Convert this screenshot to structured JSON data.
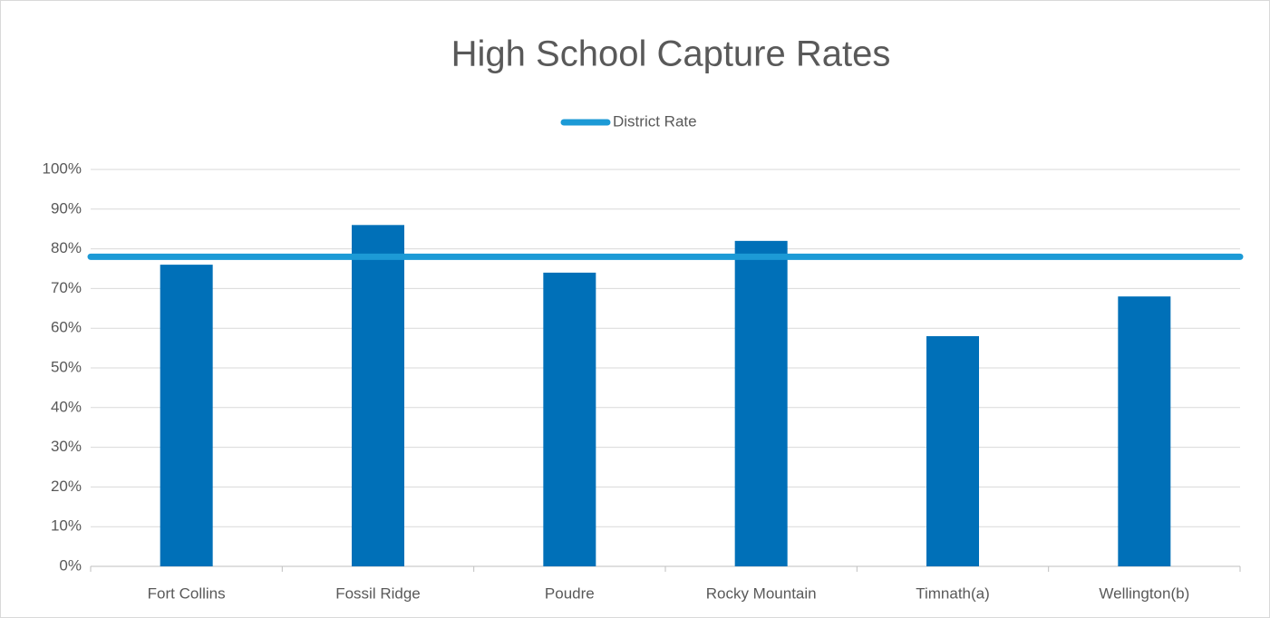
{
  "chart_data": {
    "type": "bar",
    "title": "High School Capture Rates",
    "categories": [
      "Fort Collins",
      "Fossil Ridge",
      "Poudre",
      "Rocky Mountain",
      "Timnath(a)",
      "Wellington(b)"
    ],
    "values": [
      76,
      86,
      74,
      82,
      58,
      68
    ],
    "color": "#0070b8",
    "reference_line": {
      "name": "District Rate",
      "value": 78,
      "color": "#1c9ad6"
    },
    "ylim": [
      0,
      100
    ],
    "yticks": [
      {
        "value": 0,
        "label": "0%"
      },
      {
        "value": 10,
        "label": "10%"
      },
      {
        "value": 20,
        "label": "20%"
      },
      {
        "value": 30,
        "label": "30%"
      },
      {
        "value": 40,
        "label": "40%"
      },
      {
        "value": 50,
        "label": "50%"
      },
      {
        "value": 60,
        "label": "60%"
      },
      {
        "value": 70,
        "label": "70%"
      },
      {
        "value": 80,
        "label": "80%"
      },
      {
        "value": 90,
        "label": "90%"
      },
      {
        "value": 100,
        "label": "100%"
      }
    ],
    "grid": true
  }
}
